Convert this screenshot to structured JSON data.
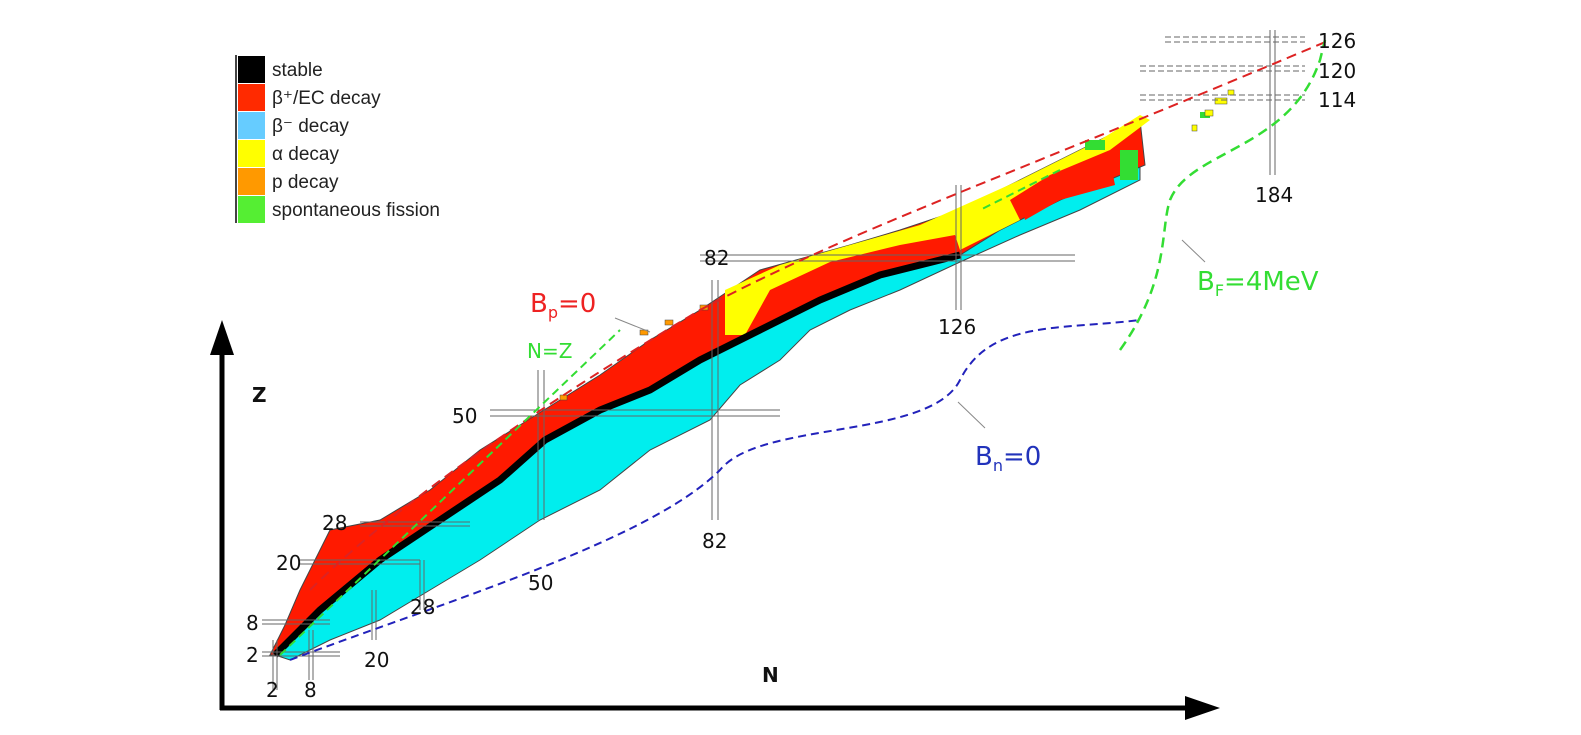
{
  "legend": [
    {
      "label": "stable",
      "color": "#000000"
    },
    {
      "label": "β⁺/EC decay",
      "color": "#ff2a00"
    },
    {
      "label": "β⁻ decay",
      "color": "#66ccff"
    },
    {
      "label": "α decay",
      "color": "#ffff00"
    },
    {
      "label": "p decay",
      "color": "#ff9900"
    },
    {
      "label": "spontaneous fission",
      "color": "#55ee33"
    }
  ],
  "axes": {
    "y_label": "Z",
    "x_label": "N"
  },
  "magic_z": [
    "2",
    "8",
    "20",
    "28",
    "50",
    "82",
    "114",
    "120",
    "126"
  ],
  "magic_n": [
    "2",
    "8",
    "20",
    "28",
    "50",
    "82",
    "126",
    "184"
  ],
  "annotations": {
    "bp": "B",
    "bp_sub": "p",
    "bp_val": "=0",
    "nz": "N=Z",
    "bn": "B",
    "bn_sub": "n",
    "bn_val": "=0",
    "bf": "B",
    "bf_sub": "F",
    "bf_val": "=4MeV"
  },
  "colors": {
    "cyan": "#00eeee",
    "red": "#ff1a00",
    "yellow": "#ffff00",
    "green": "#33dd33",
    "bp_line": "#dd2222",
    "bn_line": "#2222bb",
    "bf_line": "#33dd33"
  }
}
